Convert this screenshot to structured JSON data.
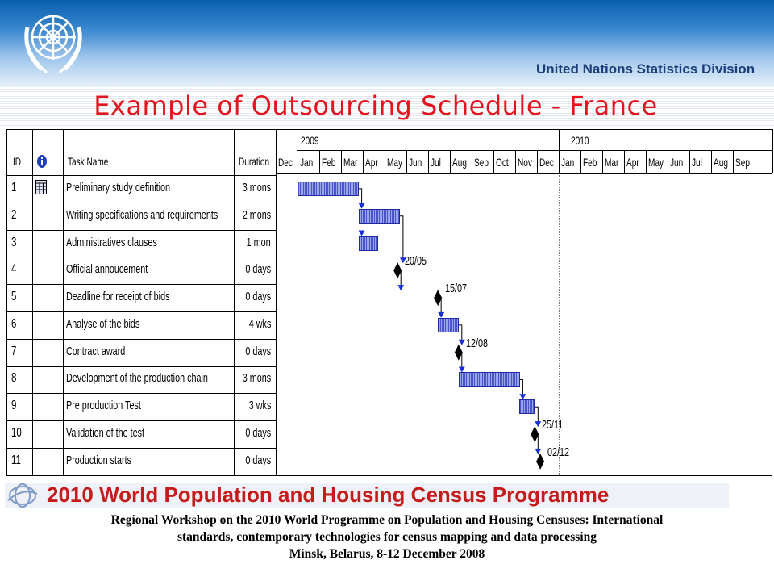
{
  "header": {
    "division": "United Nations Statistics Division",
    "emblem_icon": "un-emblem-icon"
  },
  "title": "Example of Outsourcing Schedule - France",
  "gantt": {
    "columns": {
      "id": "ID",
      "info_icon": "info-icon",
      "task_name": "Task Name",
      "duration": "Duration"
    },
    "years": [
      "2009",
      "2010"
    ],
    "months": [
      "Dec",
      "Jan",
      "Feb",
      "Mar",
      "Apr",
      "May",
      "Jun",
      "Jul",
      "Aug",
      "Sep",
      "Oct",
      "Nov",
      "Dec",
      "Jan",
      "Feb",
      "Mar",
      "Apr",
      "May",
      "Jun",
      "Jul",
      "Aug",
      "Sep"
    ],
    "tasks": [
      {
        "id": "1",
        "name": "Preliminary study definition",
        "duration": "3 mons",
        "start": 1,
        "length": 2.8,
        "note_icon": "grid-note-icon"
      },
      {
        "id": "2",
        "name": "Writing specifications and requirements",
        "duration": "2 mons",
        "start": 3.8,
        "length": 1.9
      },
      {
        "id": "3",
        "name": "Administratives clauses",
        "duration": "1 mon",
        "start": 3.8,
        "length": 0.9
      },
      {
        "id": "4",
        "name": "Official annoucement",
        "duration": "0 days",
        "milestone": 5.6,
        "label": "20/05"
      },
      {
        "id": "5",
        "name": "Deadline for receipt of bids",
        "duration": "0 days",
        "milestone": 7.45,
        "label": "15/07"
      },
      {
        "id": "6",
        "name": "Analyse of the bids",
        "duration": "4 wks",
        "start": 7.45,
        "length": 0.95
      },
      {
        "id": "7",
        "name": "Contract award",
        "duration": "0 days",
        "milestone": 8.4,
        "label": "12/08"
      },
      {
        "id": "8",
        "name": "Development of the production chain",
        "duration": "3 mons",
        "start": 8.4,
        "length": 2.8
      },
      {
        "id": "9",
        "name": "Pre production Test",
        "duration": "3 wks",
        "start": 11.2,
        "length": 0.7
      },
      {
        "id": "10",
        "name": "Validation of the test",
        "duration": "0 days",
        "milestone": 11.9,
        "label": "25/11"
      },
      {
        "id": "11",
        "name": "Production starts",
        "duration": "0 days",
        "milestone": 12.15,
        "label": "02/12"
      }
    ]
  },
  "footer": {
    "banner": "2010 World Population and Housing Census Programme",
    "line1": "Regional Workshop on the 2010 World Programme on Population and Housing Censuses: International",
    "line2": "standards, contemporary technologies for census mapping and data processing",
    "line3": "Minsk, Belarus, 8-12 December 2008",
    "logo_icon": "census-programme-logo-icon"
  }
}
